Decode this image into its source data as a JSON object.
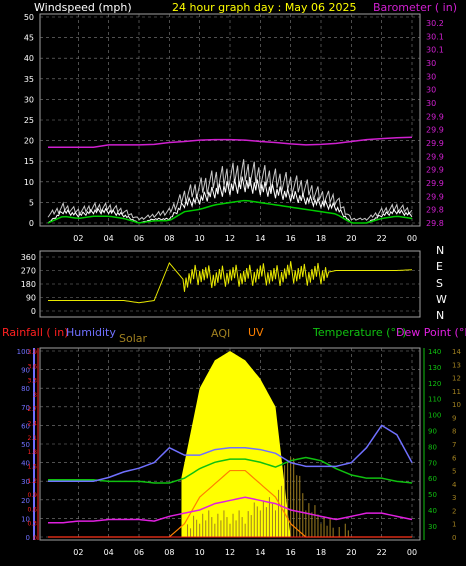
{
  "header": {
    "left_title": "Windspeed (mph)",
    "center_title": "24 hour graph day : May 06 2025",
    "right_title": "Barometer ( in)"
  },
  "colors": {
    "windspeed": "#ffffff",
    "gust_bg": "#c8c8c8",
    "wind_avg": "#00cc00",
    "barometer": "#d020d0",
    "direction": "#e8e800",
    "rainfall": "#ff2020",
    "humidity": "#7070ff",
    "solar": "#ffff00",
    "aqi": "#a08020",
    "uv": "#ff8000",
    "temperature": "#10c010",
    "dew_point": "#e020e0",
    "grid": "#808080",
    "title_yellow": "#ffff00"
  },
  "x_ticks": [
    "02",
    "04",
    "06",
    "08",
    "10",
    "12",
    "14",
    "16",
    "18",
    "20",
    "22",
    "00"
  ],
  "wind_panel": {
    "left_ticks": [
      "0",
      "5",
      "10",
      "15",
      "20",
      "25",
      "30",
      "35",
      "40",
      "45",
      "50"
    ],
    "right_ticks": [
      "29.8",
      "29.8",
      "29.9",
      "29.9",
      "29.9",
      "29.9",
      "29.9",
      "29.9",
      "29.9",
      "30",
      "30",
      "30",
      "30",
      "30.1",
      "30.1",
      "30.2"
    ]
  },
  "dir_panel": {
    "left_ticks": [
      "0",
      "90",
      "180",
      "270",
      "360"
    ],
    "compass": [
      "N",
      "W",
      "S",
      "E",
      "N"
    ]
  },
  "bottom_panel": {
    "legend": {
      "rainfall": "Rainfall ( in)",
      "humidity": "Humidity",
      "solar": "Solar",
      "aqi": "AQI",
      "uv": "UV",
      "temperature": "Temperature (°F)",
      "dew_point": "Dew Point (°F)"
    },
    "humidity_ticks": [
      "0",
      "10",
      "20",
      "30",
      "40",
      "50",
      "60",
      "70",
      "80",
      "90",
      "100"
    ],
    "rain_ticks": [
      "0",
      "0.3",
      "0.6",
      "0.9",
      "1.2",
      "1.5",
      "1.8",
      "2.1",
      "2.4",
      "2.7",
      "3",
      "3.3",
      "3.6",
      "3.9"
    ],
    "temp_ticks": [
      "30",
      "40",
      "50",
      "60",
      "70",
      "80",
      "90",
      "100",
      "110",
      "120",
      "130",
      "140"
    ],
    "uv_ticks": [
      "0",
      "1",
      "2",
      "3",
      "4",
      "5",
      "6",
      "7",
      "8",
      "9",
      "10",
      "11",
      "12",
      "13",
      "14"
    ]
  },
  "chart_data": [
    {
      "type": "line",
      "title": "Windspeed (mph)",
      "ylabel": "Windspeed (mph)",
      "y2label": "Barometer ( in)",
      "ylim": [
        0,
        50
      ],
      "y2lim": [
        29.8,
        30.2
      ],
      "x": [
        0,
        1,
        2,
        3,
        4,
        5,
        6,
        7,
        8,
        9,
        10,
        11,
        12,
        13,
        14,
        15,
        16,
        17,
        18,
        19,
        20,
        21,
        22,
        23,
        24
      ],
      "series": [
        {
          "name": "Barometer ( in)",
          "axis": "right",
          "values": [
            29.96,
            29.96,
            29.96,
            29.96,
            29.965,
            29.965,
            29.965,
            29.966,
            29.97,
            29.972,
            29.975,
            29.976,
            29.976,
            29.975,
            29.972,
            29.97,
            29.967,
            29.965,
            29.966,
            29.968,
            29.972,
            29.976,
            29.978,
            29.98,
            29.981
          ]
        },
        {
          "name": "Windspeed (mph)",
          "axis": "left",
          "values": [
            0,
            3,
            2,
            3,
            3,
            2,
            0,
            1,
            1,
            5,
            6,
            8,
            9,
            10,
            9,
            8,
            7,
            6,
            5,
            4,
            0,
            0,
            2,
            3,
            2
          ]
        },
        {
          "name": "Gust",
          "axis": "left",
          "values": [
            2,
            4,
            3,
            4,
            4,
            3,
            1,
            2,
            3,
            7,
            9,
            11,
            12,
            13,
            12,
            11,
            10,
            9,
            7,
            6,
            1,
            1,
            3,
            4,
            3
          ]
        }
      ]
    },
    {
      "type": "scatter",
      "ylabel": "Direction",
      "ylim": [
        0,
        360
      ],
      "x": [
        0,
        1,
        2,
        3,
        4,
        5,
        6,
        7,
        8,
        9,
        10,
        11,
        12,
        13,
        14,
        15,
        16,
        17,
        18,
        19,
        20,
        21,
        22,
        23,
        24
      ],
      "series": [
        {
          "name": "Direction",
          "values": [
            70,
            70,
            70,
            70,
            70,
            70,
            55,
            70,
            320,
            200,
            250,
            220,
            240,
            230,
            250,
            230,
            260,
            240,
            250,
            270,
            270,
            270,
            270,
            270,
            275
          ]
        }
      ]
    },
    {
      "type": "line",
      "x": [
        0,
        1,
        2,
        3,
        4,
        5,
        6,
        7,
        8,
        9,
        10,
        11,
        12,
        13,
        14,
        15,
        16,
        17,
        18,
        19,
        20,
        21,
        22,
        23,
        24
      ],
      "series": [
        {
          "name": "Humidity",
          "axis": "humidity",
          "values": [
            30,
            30,
            30,
            30,
            32,
            35,
            37,
            40,
            48,
            44,
            44,
            47,
            48,
            48,
            47,
            45,
            40,
            38,
            38,
            38,
            40,
            48,
            60,
            55,
            40
          ]
        },
        {
          "name": "Temperature (°F)",
          "axis": "temp",
          "values": [
            59,
            59,
            59,
            59,
            58,
            58,
            58,
            57,
            57,
            60,
            66,
            70,
            72,
            72,
            70,
            67,
            71,
            73,
            71,
            66,
            62,
            60,
            60,
            58,
            57
          ]
        },
        {
          "name": "Dew Point (°F)",
          "axis": "temp",
          "values": [
            32,
            32,
            33,
            33,
            34,
            34,
            34,
            33,
            36,
            38,
            40,
            44,
            46,
            48,
            46,
            44,
            40,
            38,
            36,
            34,
            36,
            38,
            38,
            36,
            34
          ]
        },
        {
          "name": "Solar",
          "axis": "humidity",
          "values": [
            0,
            0,
            0,
            0,
            0,
            0,
            0,
            0,
            0,
            40,
            80,
            95,
            100,
            95,
            85,
            70,
            0,
            0,
            0,
            0,
            0,
            0,
            0,
            0,
            0
          ]
        },
        {
          "name": "UV",
          "axis": "uv",
          "values": [
            0,
            0,
            0,
            0,
            0,
            0,
            0,
            0,
            0,
            1,
            3,
            4,
            5,
            5,
            4,
            3,
            1,
            0,
            0,
            0,
            0,
            0,
            0,
            0,
            0
          ]
        },
        {
          "name": "AQI",
          "axis": "uv",
          "values": [
            0,
            0,
            0,
            0,
            0,
            0,
            0,
            0,
            0,
            0,
            1,
            1,
            1,
            1,
            2,
            2,
            6,
            2,
            1,
            0,
            0,
            0,
            0,
            0,
            0
          ]
        },
        {
          "name": "Rainfall ( in)",
          "axis": "rain",
          "values": [
            0,
            0,
            0,
            0,
            0,
            0,
            0,
            0,
            0,
            0,
            0,
            0,
            0,
            0,
            0,
            0,
            0,
            0,
            0,
            0,
            0,
            0,
            0,
            0,
            0
          ]
        }
      ]
    }
  ]
}
